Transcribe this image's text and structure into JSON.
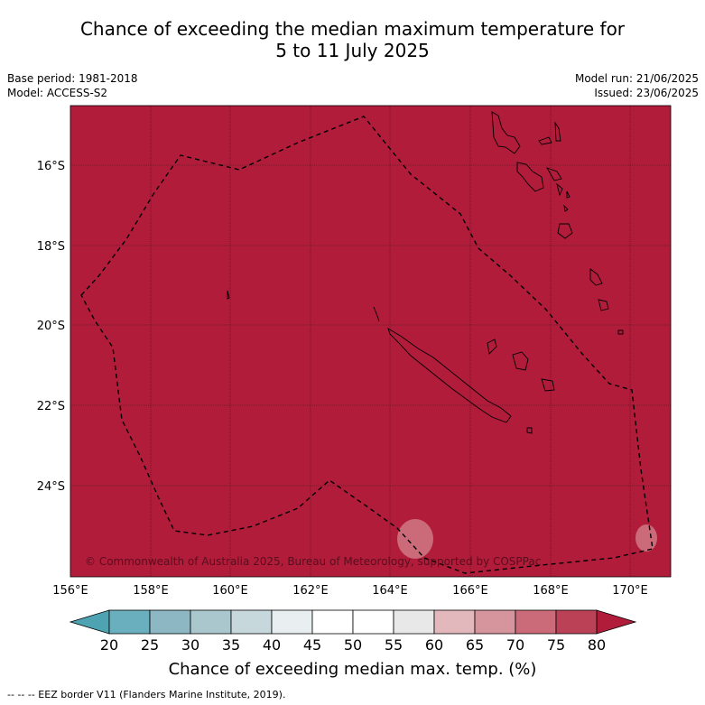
{
  "title": {
    "line1": "Chance of exceeding the median maximum temperature for",
    "line2": "5 to 11 July 2025"
  },
  "meta": {
    "base_period": "Base period: 1981-2018",
    "model": "Model: ACCESS-S2",
    "model_run": "Model run: 21/06/2025",
    "issued": "Issued: 23/06/2025"
  },
  "map": {
    "background_color": "#b01c3a",
    "copyright": "© Commonwealth of Australia 2025, Bureau of Meteorology, supported by COSPPac",
    "lat_labels": [
      "16°S",
      "18°S",
      "20°S",
      "22°S",
      "24°S"
    ],
    "lon_labels": [
      "156°E",
      "158°E",
      "160°E",
      "162°E",
      "164°E",
      "166°E",
      "168°E",
      "170°E"
    ]
  },
  "colorbar": {
    "ticks": [
      "20",
      "25",
      "30",
      "35",
      "40",
      "45",
      "50",
      "55",
      "60",
      "65",
      "70",
      "75",
      "80"
    ],
    "colors": [
      "#6aafbd",
      "#8db8c3",
      "#a9c7cc",
      "#c7d8dc",
      "#e9eff1",
      "#ffffff",
      "#ffffff",
      "#e8e8e8",
      "#e3b8bd",
      "#d6949d",
      "#cb6a78",
      "#bb4156"
    ],
    "under_color": "#4ea3b3",
    "over_color": "#b01c3a",
    "label": "Chance of exceeding median max. temp. (%)"
  },
  "footer": "--  --  -- EEZ border V11 (Flanders Marine Institute, 2019)."
}
